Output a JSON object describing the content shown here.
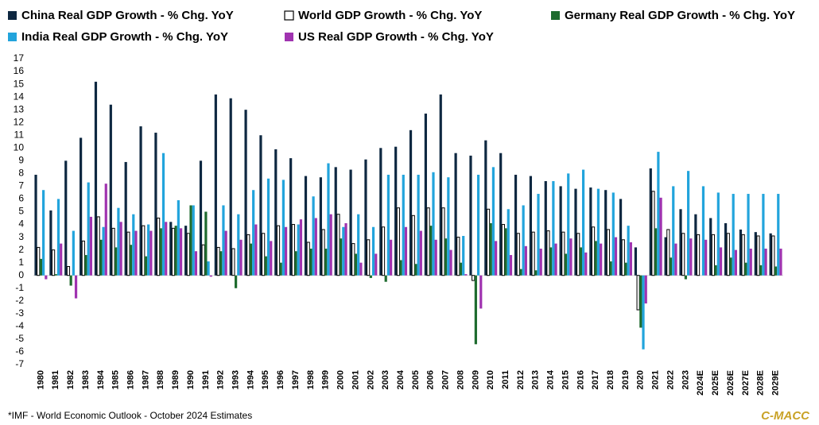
{
  "chart_data": {
    "type": "bar",
    "categories": [
      "1980",
      "1981",
      "1982",
      "1983",
      "1984",
      "1985",
      "1986",
      "1987",
      "1988",
      "1989",
      "1990",
      "1991",
      "1992",
      "1993",
      "1994",
      "1995",
      "1996",
      "1997",
      "1998",
      "1999",
      "2000",
      "2001",
      "2002",
      "2003",
      "2004",
      "2005",
      "2006",
      "2007",
      "2008",
      "2009",
      "2010",
      "2011",
      "2012",
      "2013",
      "2014",
      "2015",
      "2016",
      "2017",
      "2018",
      "2019",
      "2020",
      "2021",
      "2022",
      "2023",
      "2024E",
      "2025E",
      "2026E",
      "2027E",
      "2028E",
      "2029E"
    ],
    "series": [
      {
        "name": "China Real GDP Growth - % Chg. YoY",
        "color": "#0e2841",
        "values": [
          7.9,
          5.1,
          9.0,
          10.8,
          15.2,
          13.4,
          8.9,
          11.7,
          11.2,
          4.2,
          3.9,
          9.0,
          14.2,
          13.9,
          13.0,
          11.0,
          9.9,
          9.2,
          7.8,
          7.7,
          8.5,
          8.3,
          9.1,
          10.0,
          10.1,
          11.4,
          12.7,
          14.2,
          9.6,
          9.4,
          10.6,
          9.6,
          7.9,
          7.8,
          7.4,
          7.0,
          6.8,
          6.9,
          6.7,
          6.0,
          2.2,
          8.4,
          3.0,
          5.2,
          4.8,
          4.5,
          4.1,
          3.6,
          3.4,
          3.3
        ]
      },
      {
        "name": "World GDP Growth - % Chg. YoY",
        "color": "#ffffff",
        "edgecolor": "#000000",
        "values": [
          2.2,
          2.0,
          0.7,
          2.7,
          4.6,
          3.7,
          3.4,
          3.9,
          4.5,
          3.7,
          3.3,
          2.4,
          2.2,
          2.1,
          3.2,
          3.3,
          3.9,
          4.0,
          2.6,
          3.6,
          4.8,
          2.5,
          2.8,
          3.8,
          5.3,
          4.7,
          5.3,
          5.3,
          3.0,
          -0.4,
          5.2,
          4.0,
          3.3,
          3.4,
          3.5,
          3.4,
          3.3,
          3.8,
          3.6,
          2.8,
          -2.7,
          6.6,
          3.6,
          3.3,
          3.2,
          3.2,
          3.3,
          3.2,
          3.1,
          3.1
        ]
      },
      {
        "name": "Germany Real GDP Growth - % Chg. YoY",
        "color": "#1e6b2e",
        "values": [
          1.3,
          0.1,
          -0.8,
          1.6,
          2.8,
          2.2,
          2.4,
          1.5,
          3.7,
          3.9,
          5.5,
          5.0,
          1.9,
          -1.0,
          2.5,
          1.5,
          1.0,
          1.9,
          2.1,
          2.1,
          2.9,
          1.7,
          -0.2,
          -0.5,
          1.2,
          0.9,
          3.9,
          2.9,
          1.0,
          -5.4,
          4.1,
          3.7,
          0.5,
          0.4,
          2.2,
          1.7,
          2.2,
          2.7,
          1.1,
          1.0,
          -4.1,
          3.7,
          1.4,
          -0.3,
          0.0,
          0.8,
          1.4,
          1.0,
          0.8,
          0.7
        ]
      },
      {
        "name": "India Real GDP Growth - % Chg. YoY",
        "color": "#22a4dc",
        "values": [
          6.7,
          6.0,
          3.5,
          7.3,
          3.8,
          5.3,
          4.8,
          4.0,
          9.6,
          5.9,
          5.5,
          1.1,
          5.5,
          4.8,
          6.7,
          7.6,
          7.5,
          4.0,
          6.2,
          8.8,
          3.8,
          4.8,
          3.8,
          7.9,
          7.9,
          7.9,
          8.1,
          7.7,
          3.1,
          7.9,
          8.5,
          5.2,
          5.5,
          6.4,
          7.4,
          8.0,
          8.3,
          6.8,
          6.5,
          3.9,
          -5.8,
          9.7,
          7.0,
          8.2,
          7.0,
          6.5,
          6.4,
          6.4,
          6.4,
          6.4
        ]
      },
      {
        "name": "US Real GDP Growth - % Chg. YoY",
        "color": "#a033b0",
        "values": [
          -0.3,
          2.5,
          -1.8,
          4.6,
          7.2,
          4.2,
          3.5,
          3.5,
          4.2,
          3.7,
          1.9,
          -0.1,
          3.5,
          2.8,
          4.0,
          2.7,
          3.8,
          4.4,
          4.5,
          4.8,
          4.1,
          1.0,
          1.7,
          2.8,
          3.8,
          3.5,
          2.8,
          2.0,
          0.1,
          -2.6,
          2.7,
          1.6,
          2.3,
          2.1,
          2.5,
          2.9,
          1.8,
          2.5,
          3.0,
          2.6,
          -2.2,
          6.1,
          2.5,
          2.9,
          2.8,
          2.2,
          2.0,
          2.1,
          2.1,
          2.1
        ]
      }
    ],
    "ylim": [
      -7,
      17
    ],
    "yticks": [
      -7,
      -6,
      -5,
      -4,
      -3,
      -2,
      -1,
      0,
      1,
      2,
      3,
      4,
      5,
      6,
      7,
      8,
      9,
      10,
      11,
      12,
      13,
      14,
      15,
      16,
      17
    ],
    "grid": false,
    "legend": "top",
    "footnote": "*IMF - World Economic Outlook - October 2024 Estimates",
    "brand": "C-MACC"
  }
}
